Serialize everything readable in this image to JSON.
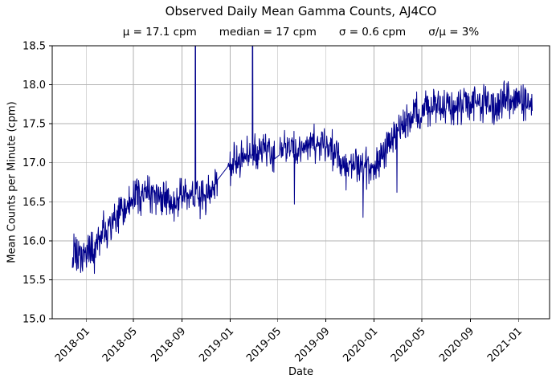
{
  "chart_data": {
    "type": "line",
    "title": "Observed Daily Mean Gamma Counts, AJ4CO",
    "stats_line": [
      "μ = 17.1 cpm",
      "median = 17 cpm",
      "σ = 0.6 cpm",
      "σ/μ = 3%"
    ],
    "xlabel": "Date",
    "ylabel": "Mean Counts per Minute (cpm)",
    "ylim": [
      15.0,
      18.5
    ],
    "y_ticks": [
      "15.0",
      "15.5",
      "16.0",
      "16.5",
      "17.0",
      "17.5",
      "18.0",
      "18.5"
    ],
    "x_ticks": [
      {
        "date": "2018-01-01",
        "label": "2018-01"
      },
      {
        "date": "2018-05-01",
        "label": "2018-05"
      },
      {
        "date": "2018-09-01",
        "label": "2018-09"
      },
      {
        "date": "2019-01-01",
        "label": "2019-01"
      },
      {
        "date": "2019-05-01",
        "label": "2019-05"
      },
      {
        "date": "2019-09-01",
        "label": "2019-09"
      },
      {
        "date": "2020-01-01",
        "label": "2020-01"
      },
      {
        "date": "2020-05-01",
        "label": "2020-05"
      },
      {
        "date": "2020-09-01",
        "label": "2020-09"
      },
      {
        "date": "2021-01-01",
        "label": "2021-01"
      }
    ],
    "xlim_dates": [
      "2017-10-07",
      "2021-03-21"
    ],
    "grid": true,
    "legend": "none",
    "line_color": "#00008b",
    "grid_color": "#b2b2b2",
    "axis_color": "#000000",
    "background_color": "#ffffff",
    "summary_stats": {
      "mean_cpm": 17.1,
      "median_cpm": 17,
      "sigma_cpm": 0.6,
      "sigma_over_mu_percent": 3
    },
    "series": {
      "name": "observed daily mean gamma counts",
      "cadence": "daily",
      "start_date": "2017-11-27",
      "end_date": "2021-02-05",
      "trend_anchors": [
        [
          "2017-11-27",
          15.85
        ],
        [
          "2017-12-10",
          15.78
        ],
        [
          "2018-01-01",
          15.85
        ],
        [
          "2018-01-25",
          15.9
        ],
        [
          "2018-02-15",
          16.1
        ],
        [
          "2018-03-15",
          16.25
        ],
        [
          "2018-04-15",
          16.45
        ],
        [
          "2018-05-10",
          16.6
        ],
        [
          "2018-06-01",
          16.6
        ],
        [
          "2018-07-01",
          16.6
        ],
        [
          "2018-08-10",
          16.45
        ],
        [
          "2018-09-01",
          16.55
        ],
        [
          "2018-10-01",
          16.6
        ],
        [
          "2018-11-01",
          16.55
        ],
        [
          "2018-11-30",
          16.78
        ],
        [
          "2018-12-26",
          16.95
        ],
        [
          "2019-01-15",
          17.0
        ],
        [
          "2019-02-15",
          17.1
        ],
        [
          "2019-03-15",
          17.15
        ],
        [
          "2019-04-15",
          17.15
        ],
        [
          "2019-04-24",
          17.05
        ],
        [
          "2019-05-06",
          17.1
        ],
        [
          "2019-05-15",
          17.2
        ],
        [
          "2019-06-15",
          17.15
        ],
        [
          "2019-07-15",
          17.25
        ],
        [
          "2019-08-15",
          17.25
        ],
        [
          "2019-09-15",
          17.15
        ],
        [
          "2019-10-15",
          17.0
        ],
        [
          "2019-11-15",
          16.95
        ],
        [
          "2019-12-15",
          16.95
        ],
        [
          "2020-01-15",
          17.05
        ],
        [
          "2020-02-15",
          17.25
        ],
        [
          "2020-03-15",
          17.5
        ],
        [
          "2020-04-15",
          17.65
        ],
        [
          "2020-05-15",
          17.7
        ],
        [
          "2020-06-15",
          17.72
        ],
        [
          "2020-07-15",
          17.7
        ],
        [
          "2020-08-15",
          17.74
        ],
        [
          "2020-09-15",
          17.75
        ],
        [
          "2020-10-15",
          17.78
        ],
        [
          "2020-11-15",
          17.75
        ],
        [
          "2020-12-15",
          17.8
        ],
        [
          "2021-01-15",
          17.78
        ],
        [
          "2021-02-05",
          17.72
        ]
      ],
      "daily_noise_amplitude_cpm": 0.3,
      "noise_seed": 42,
      "gaps_interpolated": [
        [
          "2018-11-30",
          "2018-12-26"
        ],
        [
          "2019-04-24",
          "2019-05-06"
        ]
      ],
      "offscale_high_spikes": [
        {
          "date": "2018-10-05",
          "note": "exceeds y-axis max 18.5, clipped at plot top"
        },
        {
          "date": "2019-02-27",
          "note": "exceeds y-axis max 18.5, clipped at plot top"
        }
      ],
      "low_outliers": [
        [
          "2017-12-08",
          15.62
        ],
        [
          "2018-01-22",
          15.58
        ],
        [
          "2018-08-12",
          16.25
        ],
        [
          "2018-10-17",
          16.28
        ],
        [
          "2019-06-13",
          16.47
        ],
        [
          "2019-10-22",
          16.65
        ],
        [
          "2019-12-04",
          16.3
        ],
        [
          "2020-02-28",
          16.62
        ]
      ]
    }
  }
}
